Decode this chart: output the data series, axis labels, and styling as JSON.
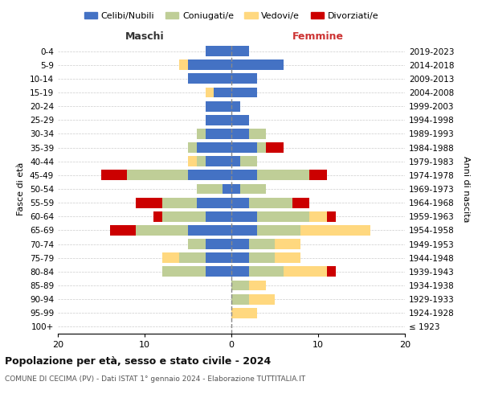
{
  "age_groups": [
    "100+",
    "95-99",
    "90-94",
    "85-89",
    "80-84",
    "75-79",
    "70-74",
    "65-69",
    "60-64",
    "55-59",
    "50-54",
    "45-49",
    "40-44",
    "35-39",
    "30-34",
    "25-29",
    "20-24",
    "15-19",
    "10-14",
    "5-9",
    "0-4"
  ],
  "birth_years": [
    "≤ 1923",
    "1924-1928",
    "1929-1933",
    "1934-1938",
    "1939-1943",
    "1944-1948",
    "1949-1953",
    "1954-1958",
    "1959-1963",
    "1964-1968",
    "1969-1973",
    "1974-1978",
    "1979-1983",
    "1984-1988",
    "1989-1993",
    "1994-1998",
    "1999-2003",
    "2004-2008",
    "2009-2013",
    "2014-2018",
    "2019-2023"
  ],
  "colors": {
    "celibe": "#4472C4",
    "coniugato": "#BFCE97",
    "vedovo": "#FFD87F",
    "divorziato": "#CC0000"
  },
  "males": {
    "celibe": [
      0,
      0,
      0,
      0,
      3,
      3,
      3,
      5,
      3,
      4,
      1,
      5,
      3,
      4,
      3,
      3,
      3,
      2,
      5,
      5,
      3
    ],
    "coniugato": [
      0,
      0,
      0,
      0,
      5,
      3,
      2,
      6,
      5,
      4,
      3,
      7,
      1,
      1,
      1,
      0,
      0,
      0,
      0,
      0,
      0
    ],
    "vedovo": [
      0,
      0,
      0,
      0,
      0,
      2,
      0,
      0,
      0,
      0,
      0,
      0,
      1,
      0,
      0,
      0,
      0,
      1,
      0,
      1,
      0
    ],
    "divorziato": [
      0,
      0,
      0,
      0,
      0,
      0,
      0,
      3,
      1,
      3,
      0,
      3,
      0,
      0,
      0,
      0,
      0,
      0,
      0,
      0,
      0
    ]
  },
  "females": {
    "nubile": [
      0,
      0,
      0,
      0,
      2,
      2,
      2,
      3,
      3,
      2,
      1,
      3,
      1,
      3,
      2,
      2,
      1,
      3,
      3,
      6,
      2
    ],
    "coniugata": [
      0,
      0,
      2,
      2,
      4,
      3,
      3,
      5,
      6,
      5,
      3,
      6,
      2,
      1,
      2,
      0,
      0,
      0,
      0,
      0,
      0
    ],
    "vedova": [
      0,
      3,
      3,
      2,
      5,
      3,
      3,
      8,
      2,
      0,
      0,
      0,
      0,
      0,
      0,
      0,
      0,
      0,
      0,
      0,
      0
    ],
    "divorziata": [
      0,
      0,
      0,
      0,
      1,
      0,
      0,
      0,
      1,
      2,
      0,
      2,
      0,
      2,
      0,
      0,
      0,
      0,
      0,
      0,
      0
    ]
  },
  "xlim": [
    -20,
    20
  ],
  "xticks": [
    -20,
    -10,
    0,
    10,
    20
  ],
  "xticklabels": [
    "20",
    "10",
    "0",
    "10",
    "20"
  ],
  "legend_labels": [
    "Celibi/Nubili",
    "Coniugati/e",
    "Vedovi/e",
    "Divorziati/e"
  ],
  "title_main": "Popolazione per età, sesso e stato civile - 2024",
  "title_sub": "COMUNE DI CECIMA (PV) - Dati ISTAT 1° gennaio 2024 - Elaborazione TUTTITALIA.IT",
  "ylabel_left": "Fasce di età",
  "ylabel_right": "Anni di nascita",
  "xlabel_maschi": "Maschi",
  "xlabel_femmine": "Femmine",
  "bg_color": "#ffffff"
}
